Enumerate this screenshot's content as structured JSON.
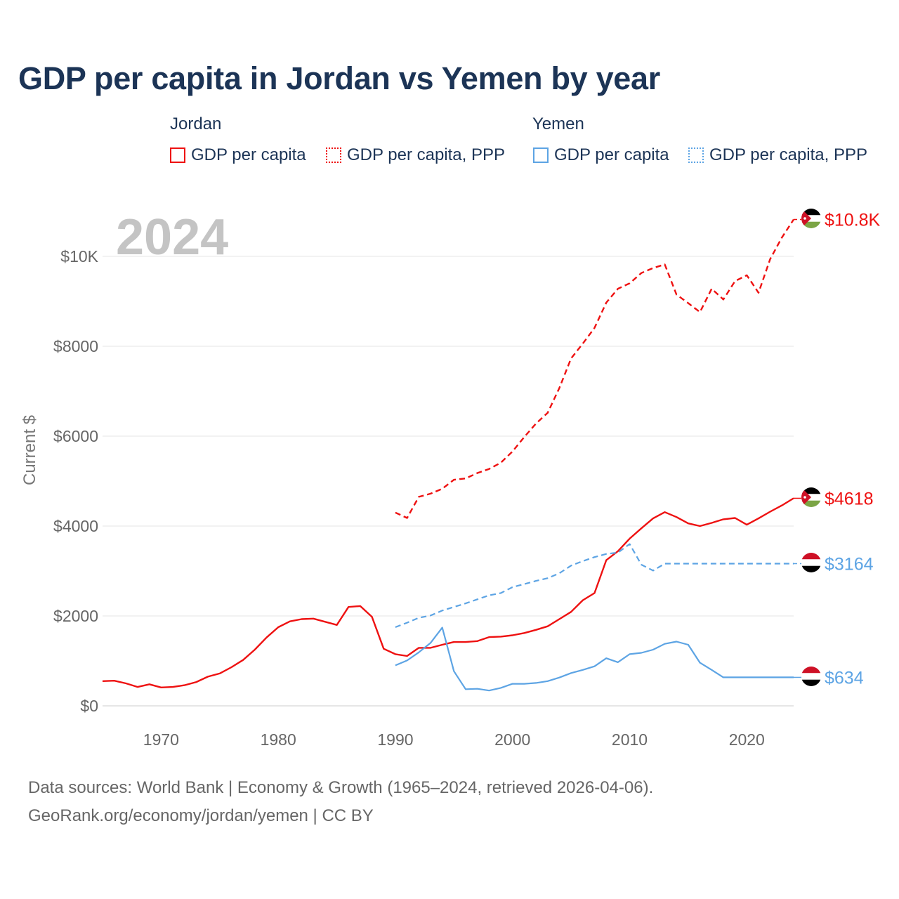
{
  "title": "GDP per capita in Jordan vs Yemen by year",
  "legend": {
    "jordan": {
      "label": "Jordan",
      "gdp": "GDP per capita",
      "ppp": "GDP per capita, PPP"
    },
    "yemen": {
      "label": "Yemen",
      "gdp": "GDP per capita",
      "ppp": "GDP per capita, PPP"
    }
  },
  "year_label": "2024",
  "colors": {
    "jordan": "#ee1111",
    "yemen": "#5da4e4",
    "title": "#1c3456"
  },
  "chart_data": {
    "type": "line",
    "title": "GDP per capita in Jordan vs Yemen by year",
    "xlabel": "",
    "ylabel": "Current $",
    "xlim": [
      1965,
      2024
    ],
    "ylim": [
      0,
      10800
    ],
    "y_ticks": [
      0,
      2000,
      4000,
      6000,
      8000,
      10000
    ],
    "y_tick_labels": [
      "$0",
      "$2000",
      "$4000",
      "$6000",
      "$8000",
      "$10K"
    ],
    "x_ticks": [
      1970,
      1980,
      1990,
      2000,
      2010,
      2020
    ],
    "x_tick_labels": [
      "1970",
      "1980",
      "1990",
      "2000",
      "2010",
      "2020"
    ],
    "grid": true,
    "series": [
      {
        "name": "Jordan GDP per capita",
        "country": "jordan",
        "style": "solid",
        "end_label": "$4618",
        "x": [
          1965,
          1966,
          1967,
          1968,
          1969,
          1970,
          1971,
          1972,
          1973,
          1974,
          1975,
          1976,
          1977,
          1978,
          1979,
          1980,
          1981,
          1982,
          1983,
          1984,
          1985,
          1986,
          1987,
          1988,
          1989,
          1990,
          1991,
          1992,
          1993,
          1994,
          1995,
          1996,
          1997,
          1998,
          1999,
          2000,
          2001,
          2002,
          2003,
          2004,
          2005,
          2006,
          2007,
          2008,
          2009,
          2010,
          2011,
          2012,
          2013,
          2014,
          2015,
          2016,
          2017,
          2018,
          2019,
          2020,
          2021,
          2022,
          2023,
          2024
        ],
        "values": [
          550,
          560,
          500,
          420,
          480,
          410,
          420,
          460,
          530,
          650,
          720,
          860,
          1020,
          1250,
          1520,
          1750,
          1880,
          1930,
          1940,
          1870,
          1800,
          2200,
          2220,
          1980,
          1270,
          1150,
          1110,
          1290,
          1290,
          1360,
          1420,
          1420,
          1440,
          1530,
          1540,
          1570,
          1620,
          1690,
          1770,
          1930,
          2090,
          2350,
          2510,
          3240,
          3440,
          3720,
          3950,
          4170,
          4310,
          4200,
          4060,
          4000,
          4070,
          4150,
          4180,
          4030,
          4170,
          4320,
          4460,
          4618
        ]
      },
      {
        "name": "Jordan GDP per capita, PPP",
        "country": "jordan",
        "style": "dashed",
        "end_label": "$10.8K",
        "x": [
          1990,
          1991,
          1992,
          1993,
          1994,
          1995,
          1996,
          1997,
          1998,
          1999,
          2000,
          2001,
          2002,
          2003,
          2004,
          2005,
          2006,
          2007,
          2008,
          2009,
          2010,
          2011,
          2012,
          2013,
          2014,
          2015,
          2016,
          2017,
          2018,
          2019,
          2020,
          2021,
          2022,
          2023,
          2024
        ],
        "values": [
          4300,
          4180,
          4650,
          4720,
          4830,
          5030,
          5060,
          5180,
          5270,
          5410,
          5660,
          5980,
          6280,
          6520,
          7070,
          7730,
          8060,
          8410,
          8970,
          9280,
          9400,
          9630,
          9740,
          9820,
          9150,
          8960,
          8760,
          9280,
          9040,
          9450,
          9580,
          9190,
          9940,
          10420,
          10820
        ]
      },
      {
        "name": "Yemen GDP per capita",
        "country": "yemen",
        "style": "solid",
        "end_label": "$634",
        "x": [
          1990,
          1991,
          1992,
          1993,
          1994,
          1995,
          1996,
          1997,
          1998,
          1999,
          2000,
          2001,
          2002,
          2003,
          2004,
          2005,
          2006,
          2007,
          2008,
          2009,
          2010,
          2011,
          2012,
          2013,
          2014,
          2015,
          2016,
          2017,
          2018,
          2019,
          2020,
          2021,
          2022,
          2023,
          2024
        ],
        "values": [
          900,
          1010,
          1190,
          1400,
          1740,
          770,
          370,
          380,
          340,
          400,
          490,
          490,
          510,
          550,
          630,
          730,
          800,
          880,
          1060,
          970,
          1150,
          1180,
          1250,
          1380,
          1430,
          1360,
          960,
          800,
          634,
          634,
          634,
          634,
          634,
          634,
          634
        ]
      },
      {
        "name": "Yemen GDP per capita, PPP",
        "country": "yemen",
        "style": "dashed",
        "end_label": "$3164",
        "x": [
          1990,
          1991,
          1992,
          1993,
          1994,
          1995,
          1996,
          1997,
          1998,
          1999,
          2000,
          2001,
          2002,
          2003,
          2004,
          2005,
          2006,
          2007,
          2008,
          2009,
          2010,
          2011,
          2012,
          2013,
          2014,
          2015,
          2016,
          2017,
          2018,
          2019,
          2020,
          2021,
          2022,
          2023,
          2024
        ],
        "values": [
          1750,
          1850,
          1960,
          2010,
          2120,
          2200,
          2280,
          2370,
          2460,
          2510,
          2640,
          2710,
          2780,
          2840,
          2950,
          3120,
          3220,
          3310,
          3380,
          3410,
          3600,
          3140,
          3010,
          3164,
          3164,
          3164,
          3164,
          3164,
          3164,
          3164,
          3164,
          3164,
          3164,
          3164,
          3164
        ]
      }
    ]
  },
  "footer": {
    "line1": "Data sources: World Bank | Economy & Growth (1965–2024, retrieved 2026-04-06).",
    "line2": "GeoRank.org/economy/jordan/yemen | CC BY"
  }
}
